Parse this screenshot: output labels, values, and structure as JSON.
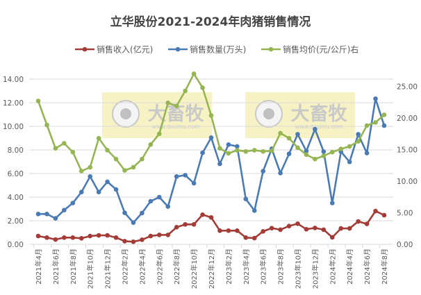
{
  "chart_data": {
    "type": "line",
    "title": "立华股份2021-2024年肉猪销售情况",
    "legend_position": "top",
    "grid": true,
    "watermark": "大畜牧 www.dxumu.com",
    "categories": [
      "2021年4月",
      "2021年5月",
      "2021年6月",
      "2021年7月",
      "2021年8月",
      "2021年9月",
      "2021年10月",
      "2021年11月",
      "2021年12月",
      "2022年1月",
      "2022年2月",
      "2022年3月",
      "2022年4月",
      "2022年5月",
      "2022年6月",
      "2022年7月",
      "2022年8月",
      "2022年9月",
      "2022年10月",
      "2022年11月",
      "2022年12月",
      "2023年1月",
      "2023年2月",
      "2023年3月",
      "2023年4月",
      "2023年5月",
      "2023年6月",
      "2023年7月",
      "2023年8月",
      "2023年9月",
      "2023年10月",
      "2023年11月",
      "2023年12月",
      "2024年1月",
      "2024年2月",
      "2024年3月",
      "2024年4月",
      "2024年5月",
      "2024年6月",
      "2024年7月",
      "2024年8月"
    ],
    "left_axis": {
      "ylim": [
        0,
        14
      ],
      "ticks": [
        "0.00",
        "2.00",
        "4.00",
        "6.00",
        "8.00",
        "10.00",
        "12.00",
        "14.00"
      ]
    },
    "right_axis": {
      "ylim": [
        0,
        25
      ],
      "ticks": [
        "0.00",
        "5.00",
        "10.00",
        "15.00",
        "20.00",
        "25.00"
      ]
    },
    "series": [
      {
        "name": "销售收入(亿元)",
        "axis": "left",
        "color": "#a33b36",
        "values": [
          0.7,
          0.57,
          0.41,
          0.57,
          0.57,
          0.51,
          0.7,
          0.76,
          0.76,
          0.57,
          0.27,
          0.22,
          0.39,
          0.7,
          0.8,
          0.8,
          1.45,
          1.69,
          1.69,
          2.51,
          2.28,
          1.16,
          1.16,
          1.16,
          0.57,
          0.53,
          1.1,
          1.37,
          1.24,
          1.55,
          1.75,
          1.28,
          1.39,
          1.24,
          0.59,
          1.35,
          1.35,
          1.94,
          1.73,
          2.82,
          2.47
        ]
      },
      {
        "name": "销售数量(万头)",
        "axis": "left",
        "color": "#4a7ab4",
        "values": [
          2.57,
          2.57,
          2.2,
          2.9,
          3.5,
          4.43,
          5.75,
          4.43,
          5.3,
          4.65,
          2.67,
          1.84,
          2.65,
          3.65,
          4.0,
          3.2,
          5.75,
          5.86,
          5.18,
          7.76,
          9.04,
          6.82,
          8.45,
          8.3,
          3.84,
          2.86,
          6.2,
          8.1,
          6.04,
          7.67,
          9.33,
          7.9,
          9.76,
          7.86,
          3.5,
          7.86,
          6.98,
          9.33,
          7.73,
          12.34,
          10.06
        ]
      },
      {
        "name": "销售均价(元/公斤)右",
        "axis": "right",
        "color": "#95b552",
        "values": [
          22.7,
          18.9,
          15.2,
          16.0,
          14.6,
          11.6,
          12.2,
          16.8,
          14.9,
          13.5,
          11.7,
          12.2,
          13.5,
          15.8,
          17.5,
          22.4,
          21.9,
          24.3,
          27.0,
          24.8,
          20.4,
          15.2,
          14.4,
          14.9,
          14.7,
          14.9,
          14.7,
          14.8,
          17.6,
          16.8,
          15.3,
          14.2,
          13.5,
          14.0,
          14.6,
          15.1,
          15.5,
          16.3,
          18.8,
          19.3,
          20.5
        ]
      }
    ]
  }
}
